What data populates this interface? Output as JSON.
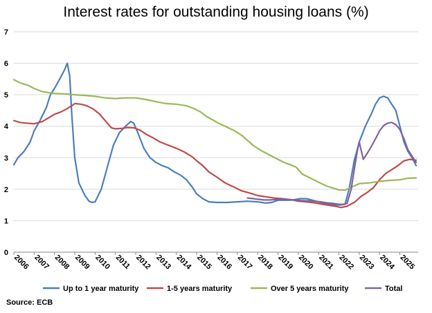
{
  "chart_data": {
    "type": "line",
    "title": "Interest rates for outstanding housing loans (%)",
    "xlabel": "",
    "ylabel": "",
    "xlim": [
      2006,
      2025.9
    ],
    "ylim": [
      0,
      7
    ],
    "yticks": [
      0,
      1,
      2,
      3,
      4,
      5,
      6,
      7
    ],
    "xticks": [
      "2006",
      "2007",
      "2008",
      "2009",
      "2010",
      "2011",
      "2012",
      "2013",
      "2014",
      "2015",
      "2016",
      "2017",
      "2018",
      "2019",
      "2020",
      "2021",
      "2022",
      "2023",
      "2024",
      "2025"
    ],
    "grid": "horizontal",
    "legend": "bottom",
    "source": "Source: ECB",
    "series": [
      {
        "name": "Up to 1 year maturity",
        "color": "#4a7ebb",
        "x": [
          2006.0,
          2006.2,
          2006.5,
          2006.8,
          2007.0,
          2007.3,
          2007.6,
          2007.8,
          2008.0,
          2008.3,
          2008.5,
          2008.63,
          2008.75,
          2008.85,
          2009.0,
          2009.2,
          2009.5,
          2009.7,
          2009.85,
          2010.0,
          2010.3,
          2010.6,
          2010.9,
          2011.2,
          2011.5,
          2011.75,
          2011.9,
          2012.1,
          2012.4,
          2012.7,
          2013.0,
          2013.3,
          2013.6,
          2013.9,
          2014.2,
          2014.5,
          2014.8,
          2015.0,
          2015.3,
          2015.6,
          2016.0,
          2016.5,
          2017.0,
          2017.5,
          2018.0,
          2018.4,
          2018.7,
          2019.0,
          2019.3,
          2019.6,
          2019.9,
          2020.1,
          2020.4,
          2020.7,
          2021.0,
          2021.3,
          2021.6,
          2021.9,
          2022.1,
          2022.3,
          2022.5,
          2022.75,
          2023.0,
          2023.3,
          2023.6,
          2023.8,
          2024.0,
          2024.2,
          2024.4,
          2024.6,
          2024.8,
          2025.0,
          2025.2,
          2025.4,
          2025.6,
          2025.8
        ],
        "values": [
          2.78,
          3.0,
          3.2,
          3.5,
          3.85,
          4.2,
          4.6,
          5.0,
          5.2,
          5.55,
          5.8,
          6.0,
          5.6,
          4.4,
          3.0,
          2.2,
          1.8,
          1.62,
          1.58,
          1.6,
          2.0,
          2.7,
          3.4,
          3.8,
          4.0,
          4.15,
          4.1,
          3.8,
          3.3,
          3.0,
          2.85,
          2.75,
          2.68,
          2.55,
          2.45,
          2.3,
          2.05,
          1.85,
          1.7,
          1.6,
          1.58,
          1.58,
          1.6,
          1.62,
          1.6,
          1.56,
          1.58,
          1.65,
          1.65,
          1.65,
          1.68,
          1.7,
          1.7,
          1.65,
          1.6,
          1.55,
          1.52,
          1.5,
          1.5,
          1.52,
          2.0,
          2.9,
          3.5,
          4.0,
          4.4,
          4.7,
          4.9,
          4.95,
          4.9,
          4.7,
          4.5,
          4.0,
          3.5,
          3.2,
          3.0,
          2.75
        ]
      },
      {
        "name": "1-5 years maturity",
        "color": "#be4b48",
        "x": [
          2006.0,
          2006.3,
          2006.6,
          2007.0,
          2007.4,
          2007.8,
          2008.0,
          2008.3,
          2008.6,
          2008.85,
          2009.0,
          2009.3,
          2009.6,
          2009.9,
          2010.2,
          2010.4,
          2010.6,
          2010.8,
          2011.0,
          2011.3,
          2011.6,
          2011.9,
          2012.2,
          2012.5,
          2012.8,
          2013.2,
          2013.6,
          2014.0,
          2014.4,
          2014.8,
          2015.0,
          2015.3,
          2015.6,
          2016.0,
          2016.4,
          2016.8,
          2017.2,
          2017.6,
          2018.0,
          2018.4,
          2018.8,
          2019.2,
          2019.6,
          2020.0,
          2020.4,
          2020.8,
          2021.2,
          2021.6,
          2021.9,
          2022.1,
          2022.4,
          2022.8,
          2023.1,
          2023.4,
          2023.7,
          2024.0,
          2024.3,
          2024.6,
          2024.9,
          2025.2,
          2025.5,
          2025.8
        ],
        "values": [
          4.18,
          4.12,
          4.1,
          4.08,
          4.15,
          4.3,
          4.38,
          4.45,
          4.55,
          4.65,
          4.72,
          4.7,
          4.65,
          4.55,
          4.4,
          4.25,
          4.1,
          3.95,
          3.92,
          3.93,
          3.96,
          3.95,
          3.88,
          3.75,
          3.65,
          3.5,
          3.4,
          3.3,
          3.18,
          3.02,
          2.9,
          2.75,
          2.55,
          2.38,
          2.2,
          2.08,
          1.95,
          1.88,
          1.8,
          1.76,
          1.72,
          1.7,
          1.67,
          1.62,
          1.6,
          1.57,
          1.52,
          1.48,
          1.45,
          1.42,
          1.46,
          1.6,
          1.78,
          1.9,
          2.05,
          2.3,
          2.5,
          2.62,
          2.75,
          2.9,
          2.95,
          2.92
        ]
      },
      {
        "name": "Over 5 years maturity",
        "color": "#98b954",
        "x": [
          2006.0,
          2006.3,
          2006.7,
          2007.0,
          2007.4,
          2007.8,
          2008.0,
          2008.5,
          2009.0,
          2009.5,
          2010.0,
          2010.5,
          2011.0,
          2011.5,
          2012.0,
          2012.5,
          2013.0,
          2013.5,
          2014.0,
          2014.5,
          2014.9,
          2015.2,
          2015.5,
          2015.8,
          2016.0,
          2016.4,
          2016.8,
          2017.2,
          2017.5,
          2017.8,
          2018.2,
          2018.6,
          2019.0,
          2019.3,
          2019.6,
          2019.9,
          2020.0,
          2020.2,
          2020.6,
          2021.0,
          2021.4,
          2021.8,
          2022.0,
          2022.3,
          2022.6,
          2023.0,
          2023.5,
          2024.0,
          2024.5,
          2025.0,
          2025.4,
          2025.8
        ],
        "values": [
          5.48,
          5.38,
          5.3,
          5.2,
          5.1,
          5.06,
          5.04,
          5.03,
          5.0,
          4.98,
          4.95,
          4.9,
          4.88,
          4.9,
          4.9,
          4.85,
          4.78,
          4.72,
          4.7,
          4.65,
          4.55,
          4.45,
          4.3,
          4.2,
          4.12,
          4.0,
          3.88,
          3.72,
          3.55,
          3.38,
          3.22,
          3.08,
          2.95,
          2.85,
          2.78,
          2.7,
          2.62,
          2.48,
          2.35,
          2.22,
          2.1,
          2.02,
          1.98,
          1.97,
          2.06,
          2.18,
          2.2,
          2.25,
          2.28,
          2.3,
          2.35,
          2.36
        ]
      },
      {
        "name": "Total",
        "color": "#7e62a1",
        "x": [
          2017.5,
          2017.8,
          2018.0,
          2018.3,
          2018.6,
          2018.9,
          2019.0,
          2019.3,
          2019.6,
          2019.9,
          2020.2,
          2020.5,
          2020.8,
          2021.1,
          2021.4,
          2021.7,
          2022.0,
          2022.2,
          2022.4,
          2022.6,
          2022.8,
          2022.9,
          2023.0,
          2023.2,
          2023.5,
          2023.8,
          2024.0,
          2024.2,
          2024.4,
          2024.6,
          2024.8,
          2025.0,
          2025.2,
          2025.4,
          2025.6,
          2025.8
        ],
        "values": [
          1.72,
          1.7,
          1.68,
          1.66,
          1.66,
          1.67,
          1.68,
          1.68,
          1.67,
          1.65,
          1.64,
          1.63,
          1.62,
          1.6,
          1.57,
          1.55,
          1.52,
          1.52,
          1.55,
          2.0,
          2.8,
          3.2,
          3.5,
          2.95,
          3.25,
          3.6,
          3.85,
          4.02,
          4.1,
          4.12,
          4.05,
          3.9,
          3.6,
          3.25,
          3.05,
          2.85
        ]
      }
    ]
  }
}
